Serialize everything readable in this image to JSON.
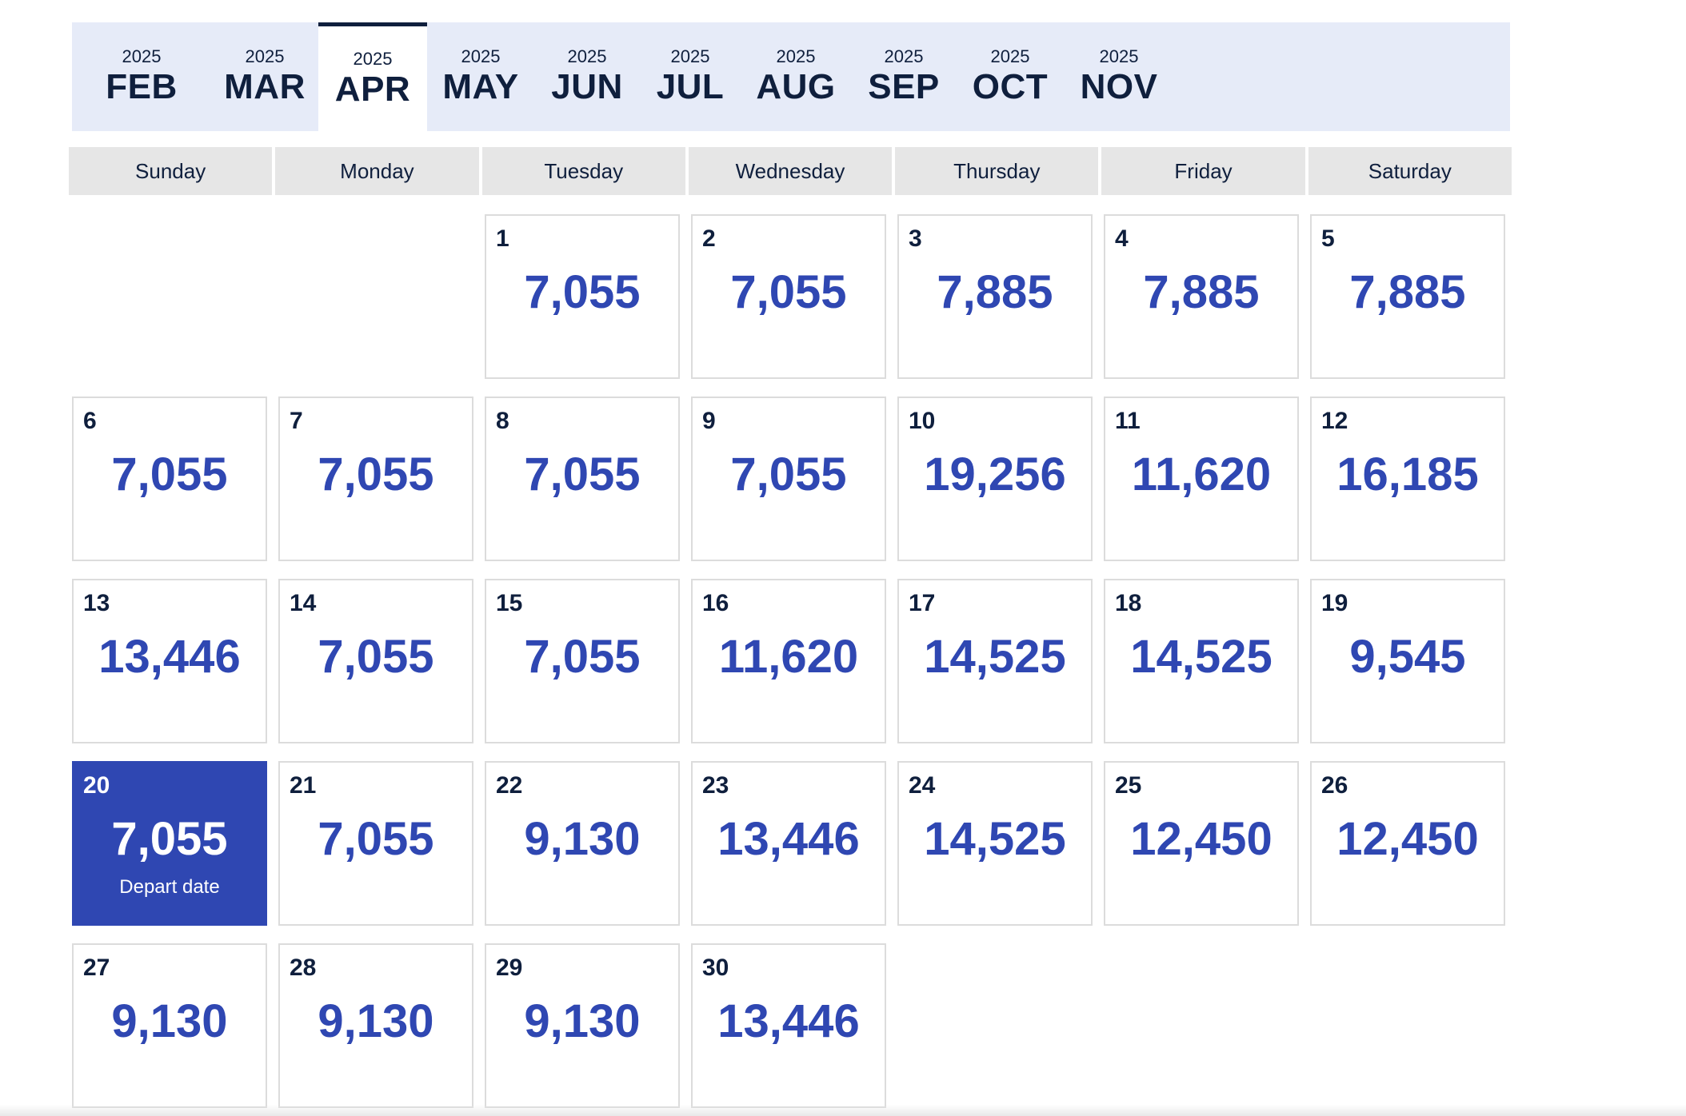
{
  "months": [
    {
      "year": "2025",
      "name": "FEB",
      "active": false
    },
    {
      "year": "2025",
      "name": "MAR",
      "active": false
    },
    {
      "year": "2025",
      "name": "APR",
      "active": true
    },
    {
      "year": "2025",
      "name": "MAY",
      "active": false
    },
    {
      "year": "2025",
      "name": "JUN",
      "active": false
    },
    {
      "year": "2025",
      "name": "JUL",
      "active": false
    },
    {
      "year": "2025",
      "name": "AUG",
      "active": false
    },
    {
      "year": "2025",
      "name": "SEP",
      "active": false
    },
    {
      "year": "2025",
      "name": "OCT",
      "active": false
    },
    {
      "year": "2025",
      "name": "NOV",
      "active": false
    }
  ],
  "weekdays": [
    "Sunday",
    "Monday",
    "Tuesday",
    "Wednesday",
    "Thursday",
    "Friday",
    "Saturday"
  ],
  "colors": {
    "accent": "#2f47b2",
    "text_dark": "#0f1f3d",
    "tab_bg": "#e6ebf8",
    "header_bg": "#e6e6e6"
  },
  "calendar": {
    "leading_empty": 2,
    "selected_label": "Depart date",
    "days": [
      {
        "day": "1",
        "price": "7,055"
      },
      {
        "day": "2",
        "price": "7,055"
      },
      {
        "day": "3",
        "price": "7,885"
      },
      {
        "day": "4",
        "price": "7,885"
      },
      {
        "day": "5",
        "price": "7,885"
      },
      {
        "day": "6",
        "price": "7,055"
      },
      {
        "day": "7",
        "price": "7,055"
      },
      {
        "day": "8",
        "price": "7,055"
      },
      {
        "day": "9",
        "price": "7,055"
      },
      {
        "day": "10",
        "price": "19,256"
      },
      {
        "day": "11",
        "price": "11,620"
      },
      {
        "day": "12",
        "price": "16,185"
      },
      {
        "day": "13",
        "price": "13,446"
      },
      {
        "day": "14",
        "price": "7,055"
      },
      {
        "day": "15",
        "price": "7,055"
      },
      {
        "day": "16",
        "price": "11,620"
      },
      {
        "day": "17",
        "price": "14,525"
      },
      {
        "day": "18",
        "price": "14,525"
      },
      {
        "day": "19",
        "price": "9,545"
      },
      {
        "day": "20",
        "price": "7,055",
        "selected": true
      },
      {
        "day": "21",
        "price": "7,055"
      },
      {
        "day": "22",
        "price": "9,130"
      },
      {
        "day": "23",
        "price": "13,446"
      },
      {
        "day": "24",
        "price": "14,525"
      },
      {
        "day": "25",
        "price": "12,450"
      },
      {
        "day": "26",
        "price": "12,450"
      },
      {
        "day": "27",
        "price": "9,130"
      },
      {
        "day": "28",
        "price": "9,130"
      },
      {
        "day": "29",
        "price": "9,130"
      },
      {
        "day": "30",
        "price": "13,446"
      }
    ]
  }
}
